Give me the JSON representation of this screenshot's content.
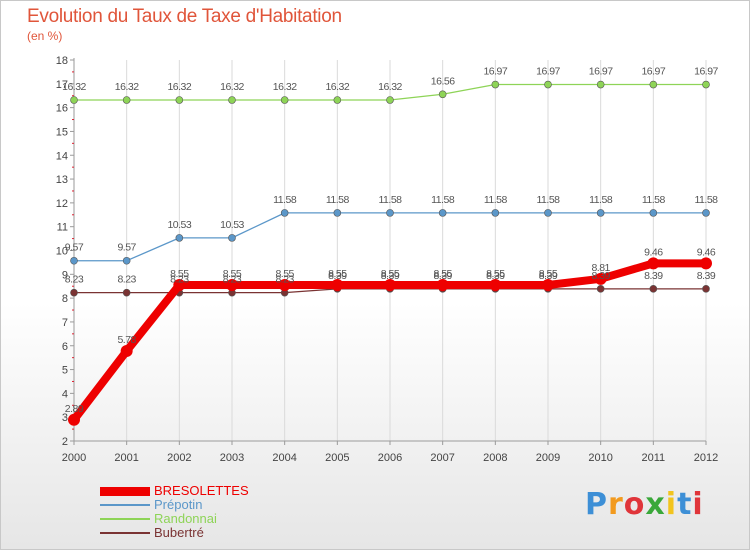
{
  "header": {
    "title": "Evolution du Taux de Taxe d'Habitation",
    "subtitle": "(en %)"
  },
  "logo": {
    "letters": [
      "P",
      "r",
      "o",
      "x",
      "i",
      "t",
      "i"
    ],
    "colors": [
      "#3d8fd6",
      "#f29a1e",
      "#e0353a",
      "#3aa83a",
      "#f2c41e",
      "#3d8fd6",
      "#e0353a"
    ]
  },
  "chart_data": {
    "type": "line",
    "title": "Evolution du Taux de Taxe d'Habitation",
    "subtitle": "(en %)",
    "xlabel": "",
    "ylabel": "",
    "x": [
      "2000",
      "2001",
      "2002",
      "2003",
      "2004",
      "2005",
      "2006",
      "2007",
      "2008",
      "2009",
      "2010",
      "2011",
      "2012"
    ],
    "ylim": [
      2,
      18
    ],
    "yticks": [
      "2",
      "3",
      "4",
      "5",
      "6",
      "7",
      "8",
      "9",
      "10",
      "11",
      "12",
      "13",
      "14",
      "15",
      "16",
      "17",
      "18"
    ],
    "grid": "vertical",
    "legend_position": "bottom-left",
    "series": [
      {
        "name": "BRESOLETTES",
        "color": "#ee0000",
        "values": [
          2.89,
          5.78,
          8.55,
          8.55,
          8.55,
          8.55,
          8.55,
          8.55,
          8.55,
          8.55,
          8.81,
          9.46,
          9.46
        ],
        "labels": [
          "2.89",
          "5.78",
          "8.55",
          "8.55",
          "8.55",
          "8.55",
          "8.55",
          "8.55",
          "8.55",
          "8.55",
          "8.81",
          "9.46",
          "9.46"
        ]
      },
      {
        "name": "Prépotin",
        "color": "#5b97c9",
        "values": [
          9.57,
          9.57,
          10.53,
          10.53,
          11.58,
          11.58,
          11.58,
          11.58,
          11.58,
          11.58,
          11.58,
          11.58,
          11.58
        ],
        "labels": [
          "9.57",
          "9.57",
          "10.53",
          "10.53",
          "11.58",
          "11.58",
          "11.58",
          "11.58",
          "11.58",
          "11.58",
          "11.58",
          "11.58",
          "11.58"
        ]
      },
      {
        "name": "Randonnai",
        "color": "#8ed457",
        "values": [
          16.32,
          16.32,
          16.32,
          16.32,
          16.32,
          16.32,
          16.32,
          16.56,
          16.97,
          16.97,
          16.97,
          16.97,
          16.97
        ],
        "labels": [
          "16.32",
          "16.32",
          "16.32",
          "16.32",
          "16.32",
          "16.32",
          "16.32",
          "16.56",
          "16.97",
          "16.97",
          "16.97",
          "16.97",
          "16.97"
        ]
      },
      {
        "name": "Bubertré",
        "color": "#7a3333",
        "values": [
          8.23,
          8.23,
          8.23,
          8.23,
          8.23,
          8.39,
          8.39,
          8.39,
          8.39,
          8.39,
          8.39,
          8.39,
          8.39
        ],
        "labels": [
          "8.23",
          "8.23",
          "8.23",
          "8.23",
          "8.23",
          "8.39",
          "8.39",
          "8.39",
          "8.39",
          "8.39",
          "8.39",
          "8.39",
          "8.39"
        ]
      }
    ]
  }
}
